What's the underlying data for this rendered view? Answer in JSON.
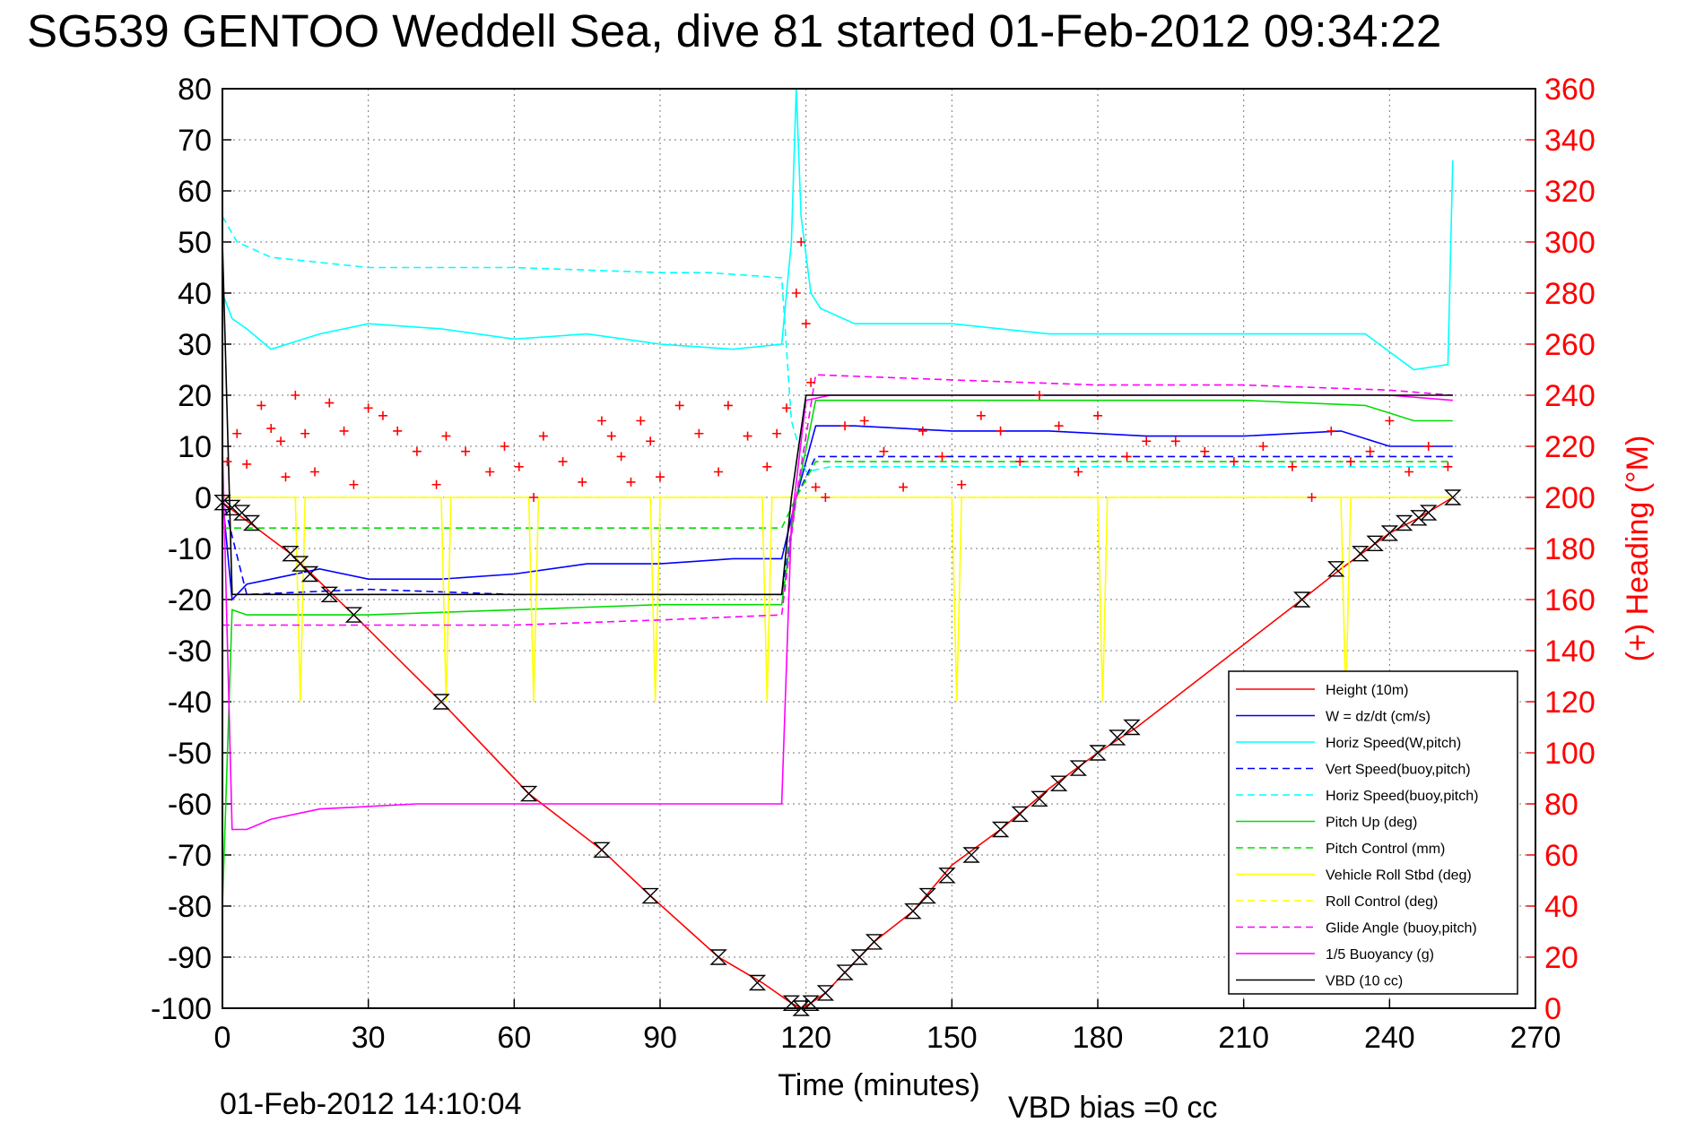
{
  "title": "SG539 GENTOO Weddell Sea, dive 81 started 01-Feb-2012 09:34:22",
  "footer": {
    "timestamp": "01-Feb-2012 14:10:04",
    "vbd_bias": "VBD bias =0 cc"
  },
  "colors": {
    "height": "#ff0000",
    "w": "#0000ff",
    "horiz_speed": "#00ffff",
    "pitch": "#00dd00",
    "roll": "#ffff00",
    "glide": "#ff00ff",
    "vbd": "#000000",
    "heading": "#ff0000"
  },
  "chart_data": {
    "type": "line",
    "xlabel": "Time (minutes)",
    "ylabel": "",
    "y2label": "(+) Heading (°M)",
    "xlim": [
      0,
      270
    ],
    "ylim": [
      -100,
      80
    ],
    "y2lim": [
      0,
      360
    ],
    "grid": true,
    "legend_position": "lower-right",
    "xticks": [
      "0",
      "30",
      "60",
      "90",
      "120",
      "150",
      "180",
      "210",
      "240",
      "270"
    ],
    "yticks": [
      "80",
      "70",
      "60",
      "50",
      "40",
      "30",
      "20",
      "10",
      "0",
      "-10",
      "-20",
      "-30",
      "-40",
      "-50",
      "-60",
      "-70",
      "-80",
      "-90",
      "-100"
    ],
    "y2ticks": [
      "360",
      "340",
      "320",
      "300",
      "280",
      "260",
      "240",
      "220",
      "200",
      "180",
      "160",
      "140",
      "120",
      "100",
      "80",
      "60",
      "40",
      "20",
      "0"
    ],
    "series": [
      {
        "name": "Height (10m)",
        "style": "solid",
        "color_key": "height",
        "x": [
          0,
          14,
          27,
          45,
          63,
          78,
          88,
          102,
          111,
          117,
          119,
          121,
          124,
          128,
          134,
          142,
          150,
          160,
          170,
          180,
          188,
          222,
          230,
          240,
          246,
          253
        ],
        "y": [
          -1,
          -11,
          -23,
          -40,
          -58,
          -69,
          -78,
          -90,
          -95,
          -99,
          -100,
          -99,
          -97,
          -93,
          -87,
          -81,
          -72,
          -65,
          -57,
          -50,
          -45,
          -20,
          -14,
          -7,
          -4,
          0
        ]
      },
      {
        "name": "W = dz/dt (cm/s)",
        "style": "solid",
        "color_key": "w",
        "x": [
          0,
          2,
          5,
          10,
          20,
          30,
          45,
          60,
          75,
          90,
          105,
          115,
          118,
          122,
          130,
          150,
          170,
          190,
          210,
          230,
          240,
          253
        ],
        "y": [
          0,
          -20,
          -17,
          -16,
          -14,
          -16,
          -16,
          -15,
          -13,
          -13,
          -12,
          -12,
          0,
          14,
          14,
          13,
          13,
          12,
          12,
          13,
          10,
          10
        ]
      },
      {
        "name": "Horiz Speed(W,pitch)",
        "style": "solid",
        "color_key": "horiz_speed",
        "x": [
          0,
          2,
          5,
          10,
          20,
          30,
          45,
          60,
          75,
          90,
          105,
          115,
          117,
          118,
          119,
          121,
          123,
          130,
          150,
          170,
          190,
          210,
          235,
          245,
          252,
          253
        ],
        "y": [
          40,
          35,
          33,
          29,
          32,
          34,
          33,
          31,
          32,
          30,
          29,
          30,
          50,
          80,
          55,
          40,
          37,
          34,
          34,
          32,
          32,
          32,
          32,
          25,
          26,
          66
        ]
      },
      {
        "name": "Vert Speed(buoy,pitch)",
        "style": "dashed",
        "color_key": "w",
        "x": [
          0,
          5,
          30,
          60,
          90,
          115,
          118,
          122,
          150,
          180,
          210,
          240,
          253
        ],
        "y": [
          0,
          -19,
          -18,
          -19,
          -19,
          -19,
          0,
          8,
          8,
          8,
          8,
          8,
          8
        ]
      },
      {
        "name": "Horiz Speed(buoy,pitch)",
        "style": "dashed",
        "color_key": "horiz_speed",
        "x": [
          0,
          3,
          10,
          30,
          45,
          60,
          90,
          100,
          115,
          117,
          120,
          125,
          150,
          180,
          210,
          240,
          253
        ],
        "y": [
          55,
          50,
          47,
          45,
          45,
          45,
          44,
          44,
          43,
          15,
          5,
          6,
          6,
          6,
          6,
          6,
          6
        ]
      },
      {
        "name": "Pitch Up (deg)",
        "style": "solid",
        "color_key": "pitch",
        "x": [
          0,
          2,
          5,
          10,
          30,
          60,
          90,
          115,
          118,
          122,
          150,
          180,
          210,
          235,
          245,
          253
        ],
        "y": [
          -80,
          -22,
          -23,
          -23,
          -23,
          -22,
          -21,
          -21,
          0,
          19,
          19,
          19,
          19,
          18,
          15,
          15
        ]
      },
      {
        "name": "Pitch Control (mm)",
        "style": "dashed",
        "color_key": "pitch",
        "x": [
          0,
          5,
          30,
          60,
          90,
          115,
          118,
          122,
          150,
          180,
          210,
          240,
          253
        ],
        "y": [
          -6,
          -6,
          -6,
          -6,
          -6,
          -6,
          0,
          7,
          7,
          7,
          7,
          7,
          7
        ]
      },
      {
        "name": "Vehicle Roll Stbd (deg)",
        "style": "solid",
        "color_key": "roll",
        "x": [
          0,
          5,
          15,
          16,
          17,
          45,
          46,
          47,
          63,
          64,
          65,
          88,
          89,
          90,
          111,
          112,
          113,
          118,
          122,
          150,
          151,
          152,
          180,
          181,
          182,
          210,
          230,
          231,
          232,
          240,
          253
        ],
        "y": [
          0,
          0,
          0,
          -40,
          0,
          0,
          -40,
          0,
          0,
          -40,
          0,
          0,
          -40,
          0,
          0,
          -40,
          0,
          0,
          0,
          0,
          -40,
          0,
          0,
          -40,
          0,
          0,
          0,
          -40,
          0,
          0,
          0
        ]
      },
      {
        "name": "Roll Control (deg)",
        "style": "dashed",
        "color_key": "roll",
        "x": [
          0,
          30,
          60,
          90,
          120,
          150,
          180,
          210,
          240,
          253
        ],
        "y": [
          0,
          0,
          0,
          0,
          0,
          0,
          0,
          0,
          0,
          0
        ]
      },
      {
        "name": "Glide Angle (buoy,pitch)",
        "style": "dashed",
        "color_key": "glide",
        "x": [
          0,
          5,
          30,
          60,
          90,
          115,
          118,
          122,
          150,
          180,
          210,
          240,
          253
        ],
        "y": [
          -25,
          -25,
          -25,
          -25,
          -24,
          -23,
          0,
          24,
          23,
          22,
          22,
          21,
          20
        ]
      },
      {
        "name": "1/5 Buoyancy (g)",
        "style": "solid",
        "color_key": "glide",
        "x": [
          0,
          2,
          5,
          10,
          20,
          40,
          60,
          80,
          100,
          115,
          117,
          120,
          125,
          150,
          180,
          210,
          240,
          253
        ],
        "y": [
          10,
          -65,
          -65,
          -63,
          -61,
          -60,
          -60,
          -60,
          -60,
          -60,
          -5,
          19,
          20,
          20,
          20,
          20,
          20,
          19
        ]
      },
      {
        "name": "VBD (10 cc)",
        "style": "solid",
        "color_key": "vbd",
        "x": [
          0,
          2,
          3,
          30,
          60,
          90,
          115,
          117,
          120,
          123,
          150,
          180,
          210,
          240,
          253
        ],
        "y": [
          50,
          -19,
          -19,
          -19,
          -19,
          -19,
          -19,
          0,
          20,
          20,
          20,
          20,
          20,
          20,
          20
        ]
      }
    ],
    "heading_series": {
      "name": "(+) Heading (°M)",
      "marker": "+",
      "x": [
        1,
        3,
        5,
        8,
        10,
        12,
        13,
        15,
        17,
        19,
        22,
        25,
        27,
        30,
        33,
        36,
        40,
        44,
        46,
        50,
        55,
        58,
        61,
        64,
        66,
        70,
        74,
        78,
        80,
        82,
        84,
        86,
        88,
        90,
        94,
        98,
        102,
        104,
        108,
        112,
        114,
        116,
        118,
        119,
        120,
        121,
        122,
        124,
        128,
        132,
        136,
        140,
        144,
        148,
        152,
        156,
        160,
        164,
        168,
        172,
        176,
        180,
        186,
        190,
        196,
        202,
        208,
        214,
        220,
        224,
        228,
        232,
        236,
        240,
        244,
        248,
        252
      ],
      "y": [
        214,
        225,
        213,
        236,
        227,
        222,
        208,
        240,
        225,
        210,
        237,
        226,
        205,
        235,
        232,
        226,
        218,
        205,
        224,
        218,
        210,
        220,
        212,
        200,
        224,
        214,
        206,
        230,
        224,
        216,
        206,
        230,
        222,
        208,
        236,
        225,
        210,
        236,
        224,
        212,
        225,
        235,
        280,
        300,
        268,
        245,
        204,
        200,
        228,
        230,
        218,
        204,
        226,
        216,
        205,
        232,
        226,
        214,
        240,
        228,
        210,
        232,
        216,
        222,
        222,
        218,
        214,
        220,
        212,
        200,
        226,
        214,
        218,
        230,
        210,
        220,
        212
      ]
    },
    "markers": {
      "name": "Height (10m)",
      "x": [
        0,
        2,
        4,
        6,
        14,
        16,
        18,
        22,
        27,
        45,
        63,
        78,
        88,
        102,
        110,
        117,
        119,
        121,
        124,
        128,
        131,
        134,
        142,
        145,
        149,
        154,
        160,
        164,
        168,
        172,
        176,
        180,
        184,
        187,
        222,
        229,
        234,
        237,
        240,
        243,
        246,
        248,
        253
      ],
      "y": [
        -1,
        -2,
        -3,
        -5,
        -11,
        -13,
        -15,
        -19,
        -23,
        -40,
        -58,
        -69,
        -78,
        -90,
        -95,
        -99,
        -100,
        -99,
        -97,
        -93,
        -90,
        -87,
        -81,
        -78,
        -74,
        -70,
        -65,
        -62,
        -59,
        -56,
        -53,
        -50,
        -47,
        -45,
        -20,
        -14,
        -11,
        -9,
        -7,
        -5,
        -4,
        -3,
        0
      ]
    }
  }
}
